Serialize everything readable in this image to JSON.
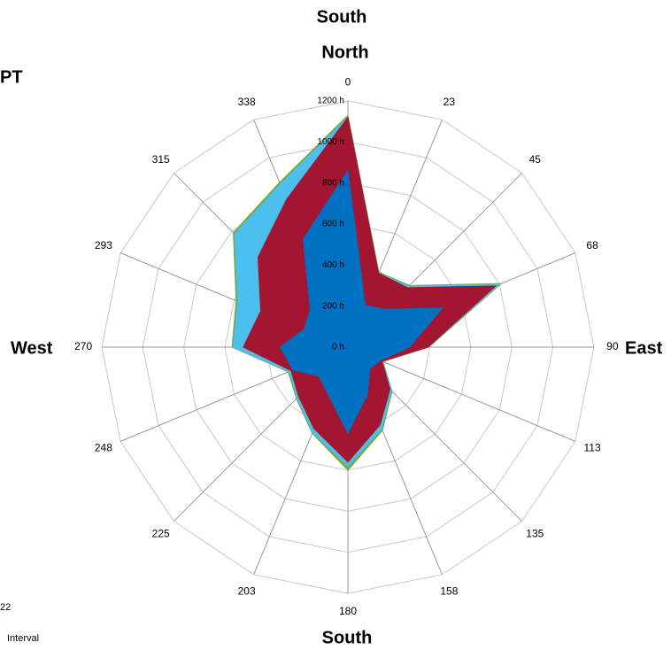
{
  "chart_data": {
    "type": "radar",
    "annotations": {
      "top": "South",
      "north": "North",
      "corner": "PT",
      "west": "West",
      "east": "East",
      "bottom": "South",
      "left_number": "22",
      "left_text": "Interval"
    },
    "categories": [
      "0",
      "23",
      "45",
      "68",
      "90",
      "113",
      "135",
      "158",
      "180",
      "203",
      "225",
      "248",
      "270",
      "293",
      "315",
      "338"
    ],
    "series": [
      {
        "color": "#70ad47",
        "values": [
          1130,
          395,
          425,
          810,
          395,
          185,
          305,
          440,
          600,
          455,
          355,
          315,
          565,
          590,
          790,
          870
        ]
      },
      {
        "color": "#4dbfee",
        "values": [
          1120,
          390,
          420,
          800,
          390,
          180,
          300,
          430,
          580,
          450,
          350,
          310,
          560,
          580,
          780,
          860
        ]
      },
      {
        "color": "#a31530",
        "values": [
          1120,
          390,
          410,
          780,
          390,
          180,
          290,
          410,
          560,
          430,
          340,
          300,
          510,
          460,
          620,
          780
        ]
      },
      {
        "color": "#0070c0",
        "values": [
          860,
          220,
          260,
          500,
          300,
          170,
          150,
          250,
          420,
          250,
          200,
          290,
          330,
          230,
          260,
          570
        ]
      }
    ],
    "ylim": [
      0,
      1200
    ],
    "yticks": [
      {
        "value": 0,
        "label": "0 h"
      },
      {
        "value": 200,
        "label": "200 h"
      },
      {
        "value": 400,
        "label": "400 h"
      },
      {
        "value": 600,
        "label": "600 h"
      },
      {
        "value": 800,
        "label": "800 h"
      },
      {
        "value": 1000,
        "label": "1000 h"
      },
      {
        "value": 1200,
        "label": "1200 h"
      }
    ],
    "grid": true
  }
}
